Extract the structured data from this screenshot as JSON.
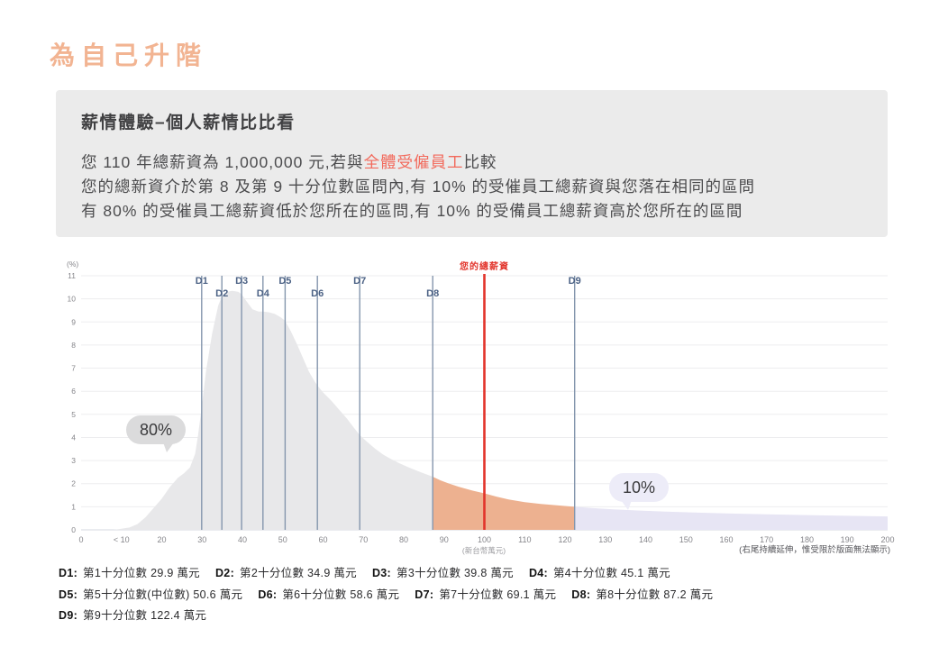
{
  "page": {
    "title": "為自己升階"
  },
  "colors": {
    "title": "#f2b492",
    "highlight_text": "#f26a5c",
    "your_salary_line": "#e2342b",
    "area_gray": "#e8e8ea",
    "area_orange": "#edb190",
    "area_lavender": "#e7e5f4",
    "decile_line": "#8496ad",
    "info_box_bg": "#ebebeb"
  },
  "info_box": {
    "heading": "薪情體驗–個人薪情比比看",
    "line1_pre": "您 110 年總薪資為 1,000,000 元,若與",
    "line1_highlight": "全體受僱員工",
    "line1_post": "比較",
    "line2": "您的總新資介於第 8 及第 9 十分位數區問內,有 10% 的受催員工總薪資與您落在相同的區問",
    "line3": "有 80% 的受催員工總薪資低於您所在的區問,有 10% 的受備員工總薪資高於您所在的區間"
  },
  "chart_data": {
    "type": "area",
    "title": "",
    "y_axis_label": "(%)",
    "x_axis_unit_label": "(新台幣萬元)",
    "right_tail_note": "(右尾持續延伸，惟受限於版面無法顯示)",
    "xlim": [
      0,
      200
    ],
    "ylim": [
      0,
      11
    ],
    "grid": true,
    "y_ticks": [
      0,
      1,
      2,
      3,
      4,
      5,
      6,
      7,
      8,
      9,
      10,
      11
    ],
    "x_ticks": [
      {
        "value": 0,
        "label": "0"
      },
      {
        "value": 10,
        "label": "< 10"
      },
      {
        "value": 20,
        "label": "20"
      },
      {
        "value": 30,
        "label": "30"
      },
      {
        "value": 40,
        "label": "40"
      },
      {
        "value": 50,
        "label": "50"
      },
      {
        "value": 60,
        "label": "60"
      },
      {
        "value": 70,
        "label": "70"
      },
      {
        "value": 80,
        "label": "80"
      },
      {
        "value": 90,
        "label": "90"
      },
      {
        "value": 100,
        "label": "100"
      },
      {
        "value": 110,
        "label": "110"
      },
      {
        "value": 120,
        "label": "120"
      },
      {
        "value": 130,
        "label": "130"
      },
      {
        "value": 140,
        "label": "140"
      },
      {
        "value": 150,
        "label": "150"
      },
      {
        "value": 160,
        "label": "160"
      },
      {
        "value": 170,
        "label": "170"
      },
      {
        "value": 180,
        "label": "180"
      },
      {
        "value": 190,
        "label": "190"
      },
      {
        "value": 200,
        "label": "200"
      }
    ],
    "your_salary_line": {
      "label": "您的總薪資",
      "x": 100,
      "color": "#e2342b"
    },
    "deciles": [
      {
        "id": "D1",
        "x": 29.9
      },
      {
        "id": "D2",
        "x": 34.9
      },
      {
        "id": "D3",
        "x": 39.8
      },
      {
        "id": "D4",
        "x": 45.1
      },
      {
        "id": "D5",
        "x": 50.6
      },
      {
        "id": "D6",
        "x": 58.6
      },
      {
        "id": "D7",
        "x": 69.1
      },
      {
        "id": "D8",
        "x": 87.2
      },
      {
        "id": "D9",
        "x": 122.4
      }
    ],
    "area_segments": [
      {
        "name": "below-d8",
        "from": 0,
        "to": 87.2,
        "color": "#e8e8ea"
      },
      {
        "name": "d8-to-d9",
        "from": 87.2,
        "to": 122.4,
        "color": "#edb190"
      },
      {
        "name": "above-d9",
        "from": 122.4,
        "to": 200,
        "color": "#e7e5f4"
      }
    ],
    "density_curve": [
      [
        0,
        0
      ],
      [
        8,
        0
      ],
      [
        10,
        0.05
      ],
      [
        12,
        0.1
      ],
      [
        14,
        0.25
      ],
      [
        16,
        0.55
      ],
      [
        18,
        0.95
      ],
      [
        20,
        1.35
      ],
      [
        22,
        1.85
      ],
      [
        24,
        2.25
      ],
      [
        25.5,
        2.45
      ],
      [
        27,
        2.7
      ],
      [
        28.3,
        3.3
      ],
      [
        29,
        4.1
      ],
      [
        29.9,
        5.3
      ],
      [
        31,
        6.9
      ],
      [
        32.5,
        8.5
      ],
      [
        34,
        9.7
      ],
      [
        34.9,
        10.1
      ],
      [
        36,
        10.3
      ],
      [
        37.5,
        10.35
      ],
      [
        39,
        10.3
      ],
      [
        39.8,
        10.2
      ],
      [
        41,
        9.9
      ],
      [
        42.5,
        9.55
      ],
      [
        44,
        9.45
      ],
      [
        45.1,
        9.45
      ],
      [
        46.5,
        9.42
      ],
      [
        48,
        9.35
      ],
      [
        49.5,
        9.2
      ],
      [
        50.6,
        9.05
      ],
      [
        52,
        8.6
      ],
      [
        53.5,
        8.05
      ],
      [
        55,
        7.45
      ],
      [
        56.5,
        6.85
      ],
      [
        58,
        6.4
      ],
      [
        58.6,
        6.25
      ],
      [
        60,
        5.95
      ],
      [
        62,
        5.6
      ],
      [
        64,
        5.2
      ],
      [
        66,
        4.8
      ],
      [
        67.5,
        4.45
      ],
      [
        69.1,
        4.1
      ],
      [
        71,
        3.8
      ],
      [
        73,
        3.5
      ],
      [
        75,
        3.25
      ],
      [
        77,
        3.05
      ],
      [
        79,
        2.88
      ],
      [
        81,
        2.72
      ],
      [
        83,
        2.58
      ],
      [
        85,
        2.44
      ],
      [
        87.2,
        2.3
      ],
      [
        89,
        2.15
      ],
      [
        91,
        2.02
      ],
      [
        93,
        1.9
      ],
      [
        95,
        1.8
      ],
      [
        97,
        1.7
      ],
      [
        100,
        1.58
      ],
      [
        103,
        1.44
      ],
      [
        106,
        1.32
      ],
      [
        110,
        1.2
      ],
      [
        114,
        1.12
      ],
      [
        118,
        1.06
      ],
      [
        122.4,
        1.0
      ],
      [
        127,
        0.94
      ],
      [
        132,
        0.89
      ],
      [
        138,
        0.84
      ],
      [
        145,
        0.79
      ],
      [
        152,
        0.75
      ],
      [
        160,
        0.71
      ],
      [
        170,
        0.67
      ],
      [
        180,
        0.64
      ],
      [
        190,
        0.61
      ],
      [
        200,
        0.58
      ]
    ],
    "annotations": [
      {
        "text": "80%"
      },
      {
        "text": "10%"
      }
    ]
  },
  "legend": {
    "rows": [
      [
        {
          "key": "D1:",
          "text": "第1十分位數 29.9 萬元"
        },
        {
          "key": "D2:",
          "text": "第2十分位數 34.9 萬元"
        },
        {
          "key": "D3:",
          "text": "第3十分位數 39.8 萬元"
        },
        {
          "key": "D4:",
          "text": "第4十分位數 45.1 萬元"
        }
      ],
      [
        {
          "key": "D5:",
          "text": "第5十分位數(中位數) 50.6 萬元"
        },
        {
          "key": "D6:",
          "text": "第6十分位數 58.6 萬元"
        },
        {
          "key": "D7:",
          "text": "第7十分位數 69.1 萬元"
        },
        {
          "key": "D8:",
          "text": "第8十分位數 87.2 萬元"
        }
      ],
      [
        {
          "key": "D9:",
          "text": "第9十分位數 122.4 萬元"
        }
      ]
    ]
  }
}
